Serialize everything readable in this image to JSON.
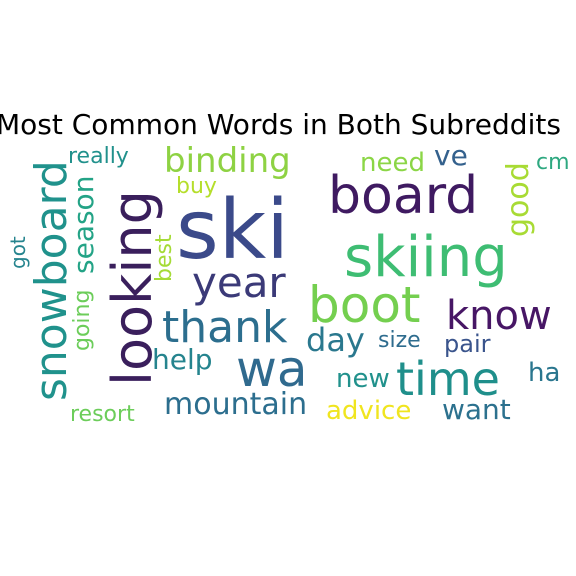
{
  "title": "Most Common Words in Both Subreddits",
  "words": [
    {
      "text": "ski",
      "color": "#3b4a8a",
      "vertical": false
    },
    {
      "text": "board",
      "color": "#3f1a61",
      "vertical": false
    },
    {
      "text": "skiing",
      "color": "#3ebd73",
      "vertical": false
    },
    {
      "text": "boot",
      "color": "#74cf4f",
      "vertical": false
    },
    {
      "text": "looking",
      "color": "#3a1f5c",
      "vertical": true
    },
    {
      "text": "snowboard",
      "color": "#20928c",
      "vertical": true
    },
    {
      "text": "thank",
      "color": "#2c6e8e",
      "vertical": false
    },
    {
      "text": "wa",
      "color": "#306a8e",
      "vertical": false
    },
    {
      "text": "time",
      "color": "#1f8f8b",
      "vertical": false
    },
    {
      "text": "year",
      "color": "#3b3a78",
      "vertical": false
    },
    {
      "text": "know",
      "color": "#471665",
      "vertical": false
    },
    {
      "text": "binding",
      "color": "#8ed243",
      "vertical": false
    },
    {
      "text": "mountain",
      "color": "#2c6e8e",
      "vertical": false
    },
    {
      "text": "season",
      "color": "#23a386",
      "vertical": true
    },
    {
      "text": "day",
      "color": "#2a788e",
      "vertical": false
    },
    {
      "text": "help",
      "color": "#25848e",
      "vertical": false
    },
    {
      "text": "new",
      "color": "#21918c",
      "vertical": false
    },
    {
      "text": "want",
      "color": "#2c718e",
      "vertical": false
    },
    {
      "text": "advice",
      "color": "#f0e51f",
      "vertical": false
    },
    {
      "text": "need",
      "color": "#8bd646",
      "vertical": false
    },
    {
      "text": "ve",
      "color": "#34618d",
      "vertical": false
    },
    {
      "text": "good",
      "color": "#a8db34",
      "vertical": true
    },
    {
      "text": "really",
      "color": "#21918c",
      "vertical": false
    },
    {
      "text": "size",
      "color": "#2e6c8e",
      "vertical": false
    },
    {
      "text": "pair",
      "color": "#3a548c",
      "vertical": false
    },
    {
      "text": "ha",
      "color": "#2a768e",
      "vertical": false
    },
    {
      "text": "cm",
      "color": "#2ea880",
      "vertical": false
    },
    {
      "text": "buy",
      "color": "#b5de2b",
      "vertical": false
    },
    {
      "text": "best",
      "color": "#a5db36",
      "vertical": true
    },
    {
      "text": "going",
      "color": "#6ccd5a",
      "vertical": true
    },
    {
      "text": "got",
      "color": "#25848e",
      "vertical": true
    },
    {
      "text": "resort",
      "color": "#6ccd5a",
      "vertical": false
    }
  ]
}
